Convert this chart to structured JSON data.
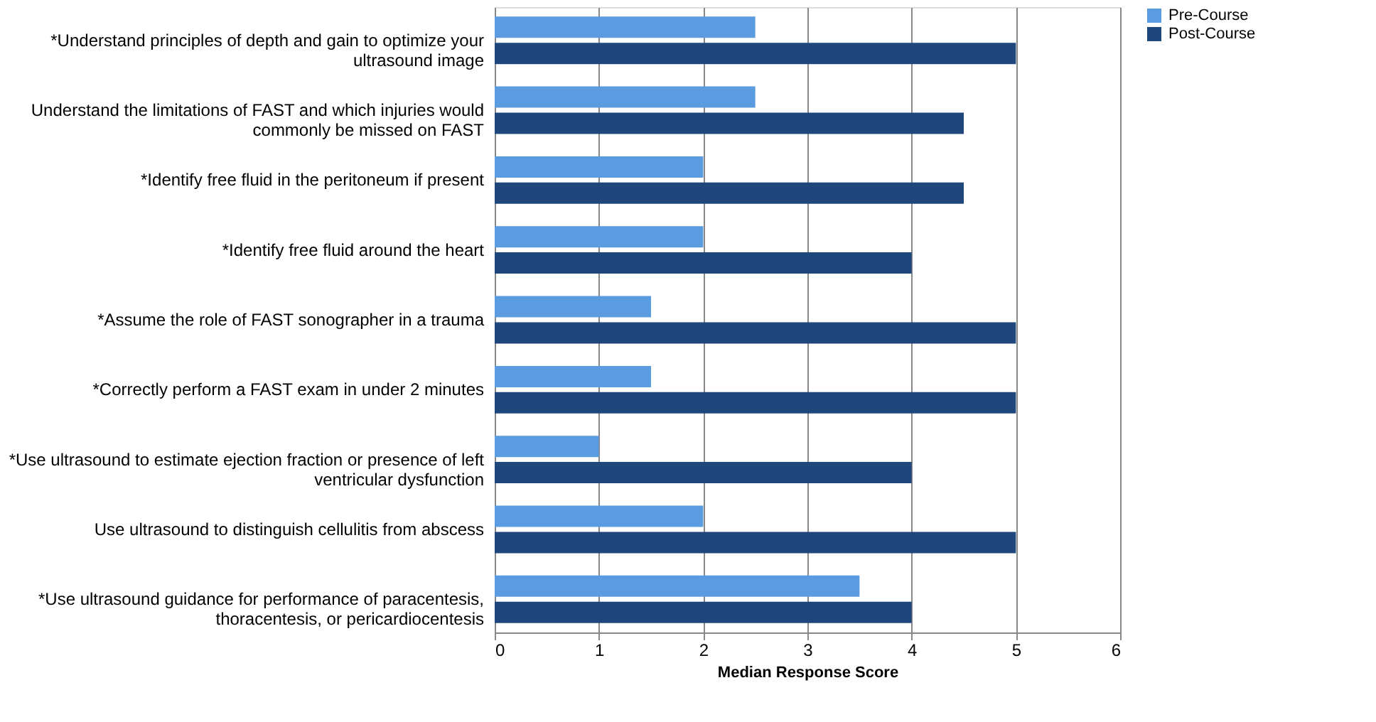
{
  "chart_data": {
    "type": "bar",
    "orientation": "horizontal",
    "xlabel": "Median Response Score",
    "categories": [
      "*Understand principles of depth and gain to optimize your ultrasound image",
      "Understand the limitations of FAST and which injuries would commonly be missed on FAST",
      "*Identify free fluid in the peritoneum if present",
      "*Identify free fluid around the heart",
      "*Assume the role of FAST sonographer in a trauma",
      "*Correctly perform a FAST exam in under 2 minutes",
      "*Use ultrasound to estimate ejection fraction or presence of left ventricular dysfunction",
      "Use ultrasound to distinguish cellulitis from abscess",
      "*Use ultrasound guidance for performance of paracentesis, thoracentesis, or pericardiocentesis"
    ],
    "series": [
      {
        "name": "Pre-Course",
        "color": "#5b9be0",
        "values": [
          2.5,
          2.5,
          2,
          2,
          1.5,
          1.5,
          1,
          2,
          3.5
        ]
      },
      {
        "name": "Post-Course",
        "color": "#1f477c",
        "values": [
          5,
          4.5,
          4.5,
          4,
          5,
          5,
          4,
          5,
          4
        ]
      }
    ],
    "xlim": [
      0,
      6
    ],
    "xticks": [
      0,
      1,
      2,
      3,
      4,
      5,
      6
    ],
    "grid": "x",
    "legend": "right"
  }
}
